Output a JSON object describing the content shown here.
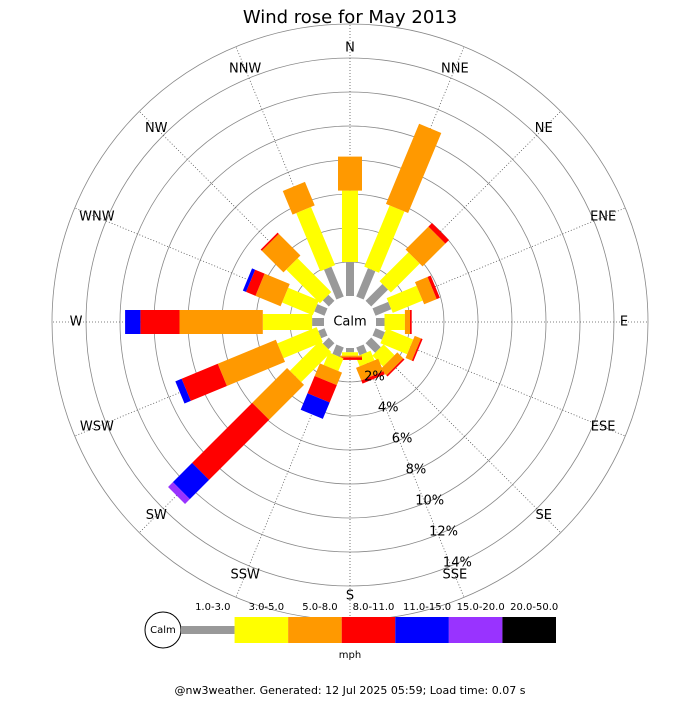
{
  "chart_data": {
    "type": "windrose",
    "title": "Wind rose for May 2013",
    "categories": [
      "N",
      "NNE",
      "NE",
      "ENE",
      "E",
      "ESE",
      "SE",
      "SSE",
      "S",
      "SSW",
      "SW",
      "WSW",
      "W",
      "WNW",
      "NW",
      "NNW"
    ],
    "series": [
      {
        "name": "1.0-3.0",
        "color": "#999999",
        "values": [
          2.0,
          1.8,
          1.4,
          1.0,
          0.5,
          0.6,
          0.8,
          0.5,
          0.25,
          0.6,
          0.5,
          0.4,
          0.7,
          0.65,
          0.5,
          1.9
        ]
      },
      {
        "name": "3.0-5.0",
        "color": "#ffff00",
        "values": [
          4.2,
          3.9,
          2.4,
          1.9,
          1.2,
          1.7,
          0.9,
          0.6,
          0.2,
          0.8,
          2.5,
          2.5,
          2.9,
          1.95,
          2.8,
          3.7
        ]
      },
      {
        "name": "5.0-8.0",
        "color": "#ff9900",
        "values": [
          2.0,
          5.1,
          1.9,
          0.8,
          0.3,
          0.4,
          0.5,
          0.8,
          0.1,
          0.8,
          2.9,
          3.7,
          4.9,
          1.6,
          1.8,
          1.5
        ]
      },
      {
        "name": "8.0-11.0",
        "color": "#ff0000",
        "values": [
          0,
          0,
          0.3,
          0.2,
          0.1,
          0.1,
          0.1,
          0.2,
          0.15,
          1.1,
          5.0,
          2.3,
          2.3,
          0.6,
          0.1,
          0
        ]
      },
      {
        "name": "11.0-15.0",
        "color": "#0000ff",
        "values": [
          0,
          0,
          0,
          0,
          0,
          0,
          0,
          0,
          0,
          1.05,
          1.6,
          0.4,
          0.9,
          0.2,
          0,
          0
        ]
      },
      {
        "name": "15.0-20.0",
        "color": "#9933ff",
        "values": [
          0,
          0,
          0,
          0,
          0,
          0,
          0,
          0,
          0,
          0,
          0.4,
          0,
          0,
          0,
          0,
          0
        ]
      },
      {
        "name": "20.0-50.0",
        "color": "#000000",
        "values": [
          0,
          0,
          0,
          0,
          0,
          0,
          0,
          0,
          0,
          0,
          0,
          0,
          0,
          0,
          0,
          0
        ]
      }
    ],
    "rlim": [
      0,
      16
    ],
    "rticks": [
      {
        "value": 2,
        "label": "2%"
      },
      {
        "value": 4,
        "label": "4%"
      },
      {
        "value": 6,
        "label": "6%"
      },
      {
        "value": 8,
        "label": "8%"
      },
      {
        "value": 10,
        "label": "10%"
      },
      {
        "value": 12,
        "label": "12%"
      },
      {
        "value": 14,
        "label": "14%"
      }
    ],
    "calm_label": "Calm",
    "units": "mph",
    "footer": "@nw3weather. Generated: 12 Jul 2025 05:59; Load time: 0.07 s"
  }
}
